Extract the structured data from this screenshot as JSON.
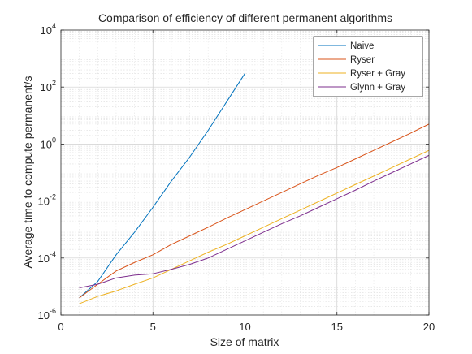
{
  "chart_data": {
    "type": "line",
    "title": "Comparison of efficiency of different permanent algorithms",
    "xlabel": "Size of matrix",
    "ylabel": "Average time to compute permanent/s",
    "xlim": [
      0,
      20
    ],
    "ylim": [
      1e-06,
      10000.0
    ],
    "yscale": "log",
    "x_ticks": [
      0,
      5,
      10,
      15,
      20
    ],
    "y_ticks": [
      {
        "base": "10",
        "exp": "-6",
        "value": 1e-06
      },
      {
        "base": "10",
        "exp": "-4",
        "value": 0.0001
      },
      {
        "base": "10",
        "exp": "-2",
        "value": 0.01
      },
      {
        "base": "10",
        "exp": "0",
        "value": 1
      },
      {
        "base": "10",
        "exp": "2",
        "value": 100
      },
      {
        "base": "10",
        "exp": "4",
        "value": 10000
      }
    ],
    "grid": true,
    "minor_grid": true,
    "legend_position": "top-right",
    "series": [
      {
        "name": "Naive",
        "color": "#0072BD",
        "points": [
          [
            1,
            4e-06
          ],
          [
            2,
            1.5e-05
          ],
          [
            3,
            0.00013
          ],
          [
            4,
            0.0008
          ],
          [
            5,
            0.006
          ],
          [
            6,
            0.05
          ],
          [
            7,
            0.35
          ],
          [
            8,
            3
          ],
          [
            9,
            30.0
          ],
          [
            10,
            300.0
          ]
        ]
      },
      {
        "name": "Ryser",
        "color": "#D95319",
        "points": [
          [
            1,
            4e-06
          ],
          [
            2,
            1.2e-05
          ],
          [
            3,
            3.5e-05
          ],
          [
            4,
            7e-05
          ],
          [
            5,
            0.00013
          ],
          [
            6,
            0.0003
          ],
          [
            7,
            0.0006
          ],
          [
            8,
            0.0012
          ],
          [
            9,
            0.0025
          ],
          [
            10,
            0.005
          ],
          [
            11,
            0.01
          ],
          [
            12,
            0.02
          ],
          [
            13,
            0.04
          ],
          [
            14,
            0.08
          ],
          [
            15,
            0.15
          ],
          [
            16,
            0.3
          ],
          [
            17,
            0.6
          ],
          [
            18,
            1.2
          ],
          [
            19,
            2.4
          ],
          [
            20,
            5
          ]
        ]
      },
      {
        "name": "Ryser + Gray",
        "color": "#EDB120",
        "points": [
          [
            1,
            2.5e-06
          ],
          [
            2,
            4.5e-06
          ],
          [
            3,
            7e-06
          ],
          [
            4,
            1.2e-05
          ],
          [
            5,
            2e-05
          ],
          [
            6,
            4e-05
          ],
          [
            7,
            8e-05
          ],
          [
            8,
            0.00016
          ],
          [
            9,
            0.0003
          ],
          [
            10,
            0.0006
          ],
          [
            11,
            0.0012
          ],
          [
            12,
            0.0024
          ],
          [
            13,
            0.0048
          ],
          [
            14,
            0.0095
          ],
          [
            15,
            0.019
          ],
          [
            16,
            0.038
          ],
          [
            17,
            0.075
          ],
          [
            18,
            0.15
          ],
          [
            19,
            0.3
          ],
          [
            20,
            0.6
          ]
        ]
      },
      {
        "name": "Glynn + Gray",
        "color": "#7E2F8E",
        "points": [
          [
            1,
            9e-06
          ],
          [
            2,
            1.2e-05
          ],
          [
            3,
            2e-05
          ],
          [
            4,
            2.5e-05
          ],
          [
            5,
            2.8e-05
          ],
          [
            6,
            4e-05
          ],
          [
            7,
            6e-05
          ],
          [
            8,
            0.0001
          ],
          [
            9,
            0.0002
          ],
          [
            10,
            0.0004
          ],
          [
            11,
            0.0008
          ],
          [
            12,
            0.0016
          ],
          [
            13,
            0.003
          ],
          [
            14,
            0.006
          ],
          [
            15,
            0.012
          ],
          [
            16,
            0.024
          ],
          [
            17,
            0.05
          ],
          [
            18,
            0.1
          ],
          [
            19,
            0.2
          ],
          [
            20,
            0.4
          ]
        ]
      }
    ]
  }
}
